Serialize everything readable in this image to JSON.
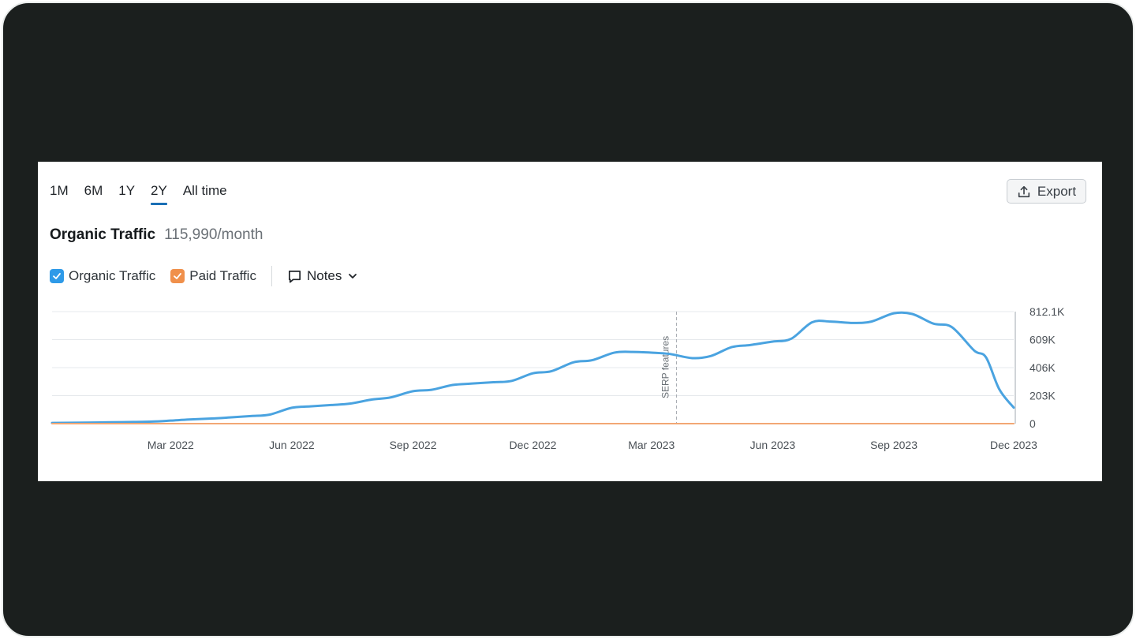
{
  "periods": [
    {
      "label": "1M",
      "active": false
    },
    {
      "label": "6M",
      "active": false
    },
    {
      "label": "1Y",
      "active": false
    },
    {
      "label": "2Y",
      "active": true
    },
    {
      "label": "All time",
      "active": false
    }
  ],
  "export_label": "Export",
  "title": "Organic Traffic",
  "metric": "115,990/month",
  "legend": [
    {
      "label": "Organic Traffic",
      "color": "#2e9ae8",
      "checked": true
    },
    {
      "label": "Paid Traffic",
      "color": "#f0904b",
      "checked": true
    }
  ],
  "notes_label": "Notes",
  "colors": {
    "organic": "#4aa3e0",
    "paid": "#f2a774",
    "accent": "#1a6fb5"
  },
  "icons": {
    "export": "export-icon",
    "notes": "comment-icon",
    "dropdown": "chevron-down-icon",
    "check": "check-icon"
  },
  "chart_data": {
    "type": "line",
    "x_ticks": [
      "Mar 2022",
      "Jun 2022",
      "Sep 2022",
      "Dec 2022",
      "Mar 2023",
      "Jun 2023",
      "Sep 2023",
      "Dec 2023"
    ],
    "y_ticks": [
      "0",
      "203K",
      "406K",
      "609K",
      "812.1K"
    ],
    "ylim": [
      0,
      812100
    ],
    "x_range": [
      "Dec 2021",
      "Dec 2023"
    ],
    "annotation": {
      "x": "2023-03-20",
      "label": "SERP features"
    },
    "grid": true,
    "series": [
      {
        "name": "Organic Traffic",
        "points": [
          [
            "2021-12-01",
            5000
          ],
          [
            "2022-01-01",
            8000
          ],
          [
            "2022-01-15",
            10000
          ],
          [
            "2022-02-01",
            12000
          ],
          [
            "2022-02-15",
            15000
          ],
          [
            "2022-03-01",
            22000
          ],
          [
            "2022-03-15",
            30000
          ],
          [
            "2022-04-01",
            37000
          ],
          [
            "2022-04-15",
            45000
          ],
          [
            "2022-05-01",
            55000
          ],
          [
            "2022-05-15",
            65000
          ],
          [
            "2022-06-01",
            115000
          ],
          [
            "2022-06-15",
            125000
          ],
          [
            "2022-07-01",
            135000
          ],
          [
            "2022-07-15",
            145000
          ],
          [
            "2022-08-01",
            175000
          ],
          [
            "2022-08-15",
            190000
          ],
          [
            "2022-09-01",
            235000
          ],
          [
            "2022-09-15",
            245000
          ],
          [
            "2022-10-01",
            280000
          ],
          [
            "2022-10-15",
            290000
          ],
          [
            "2022-11-01",
            300000
          ],
          [
            "2022-11-15",
            310000
          ],
          [
            "2022-12-01",
            365000
          ],
          [
            "2022-12-15",
            380000
          ],
          [
            "2023-01-01",
            445000
          ],
          [
            "2023-01-15",
            460000
          ],
          [
            "2023-02-01",
            515000
          ],
          [
            "2023-02-15",
            520000
          ],
          [
            "2023-03-01",
            515000
          ],
          [
            "2023-03-15",
            505000
          ],
          [
            "2023-04-01",
            475000
          ],
          [
            "2023-04-15",
            490000
          ],
          [
            "2023-05-01",
            555000
          ],
          [
            "2023-05-15",
            570000
          ],
          [
            "2023-06-01",
            595000
          ],
          [
            "2023-06-15",
            615000
          ],
          [
            "2023-07-01",
            735000
          ],
          [
            "2023-07-15",
            740000
          ],
          [
            "2023-08-01",
            730000
          ],
          [
            "2023-08-15",
            740000
          ],
          [
            "2023-09-01",
            800000
          ],
          [
            "2023-09-15",
            795000
          ],
          [
            "2023-10-01",
            725000
          ],
          [
            "2023-10-15",
            700000
          ],
          [
            "2023-11-01",
            530000
          ],
          [
            "2023-11-10",
            480000
          ],
          [
            "2023-11-20",
            250000
          ],
          [
            "2023-12-01",
            116000
          ]
        ]
      },
      {
        "name": "Paid Traffic",
        "points": [
          [
            "2021-12-01",
            0
          ],
          [
            "2023-12-01",
            0
          ]
        ]
      }
    ]
  }
}
